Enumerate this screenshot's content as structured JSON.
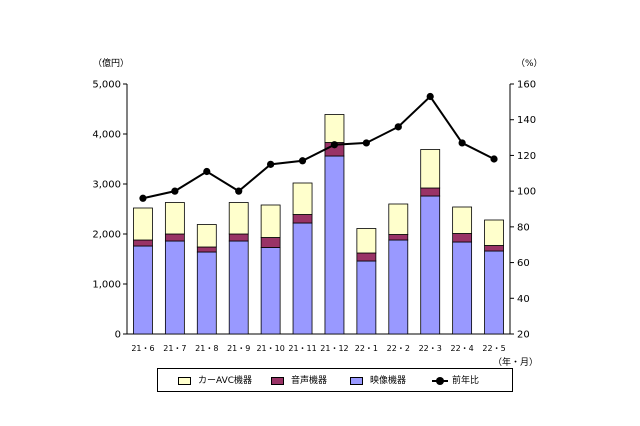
{
  "chart_data": {
    "type": "bar",
    "stacked": true,
    "categories": [
      "21・6",
      "21・7",
      "21・8",
      "21・9",
      "21・10",
      "21・11",
      "21・12",
      "22・1",
      "22・2",
      "22・3",
      "22・4",
      "22・5"
    ],
    "series": [
      {
        "name": "映像機器",
        "axis": "left",
        "color": "#9999ff",
        "values": [
          1760,
          1860,
          1640,
          1860,
          1730,
          2220,
          3560,
          1460,
          1880,
          2760,
          1840,
          1660
        ]
      },
      {
        "name": "音声機器",
        "axis": "left",
        "color": "#993366",
        "values": [
          120,
          140,
          100,
          140,
          200,
          170,
          270,
          160,
          110,
          160,
          170,
          110
        ]
      },
      {
        "name": "カーAVC機器",
        "axis": "left",
        "color": "#ffffcc",
        "values": [
          640,
          630,
          450,
          630,
          650,
          630,
          560,
          490,
          610,
          770,
          530,
          510
        ]
      }
    ],
    "line_series": {
      "name": "前年比",
      "axis": "right",
      "color": "#000000",
      "values": [
        96,
        100,
        111,
        100,
        115,
        117,
        126,
        127,
        136,
        153,
        127,
        118
      ]
    },
    "left_axis": {
      "unit": "（億円）",
      "ylim": [
        0,
        5000
      ],
      "ticks": [
        0,
        1000,
        2000,
        3000,
        4000,
        5000
      ],
      "tick_labels": [
        "0",
        "1,000",
        "2,000",
        "3,000",
        "4,000",
        "5,000"
      ]
    },
    "right_axis": {
      "unit": "（%）",
      "ylim": [
        20,
        160
      ],
      "ticks": [
        20,
        40,
        60,
        80,
        100,
        120,
        140,
        160
      ],
      "tick_labels": [
        "20",
        "40",
        "60",
        "80",
        "100",
        "120",
        "140",
        "160"
      ]
    },
    "x_unit": "（年・月）",
    "legend": {
      "placement": "bottom",
      "items": [
        {
          "label": "カーAVC機器",
          "kind": "bar",
          "color": "#ffffcc"
        },
        {
          "label": "音声機器",
          "kind": "bar",
          "color": "#993366"
        },
        {
          "label": "映像機器",
          "kind": "bar",
          "color": "#9999ff"
        },
        {
          "label": "前年比",
          "kind": "line",
          "color": "#000000"
        }
      ]
    }
  }
}
